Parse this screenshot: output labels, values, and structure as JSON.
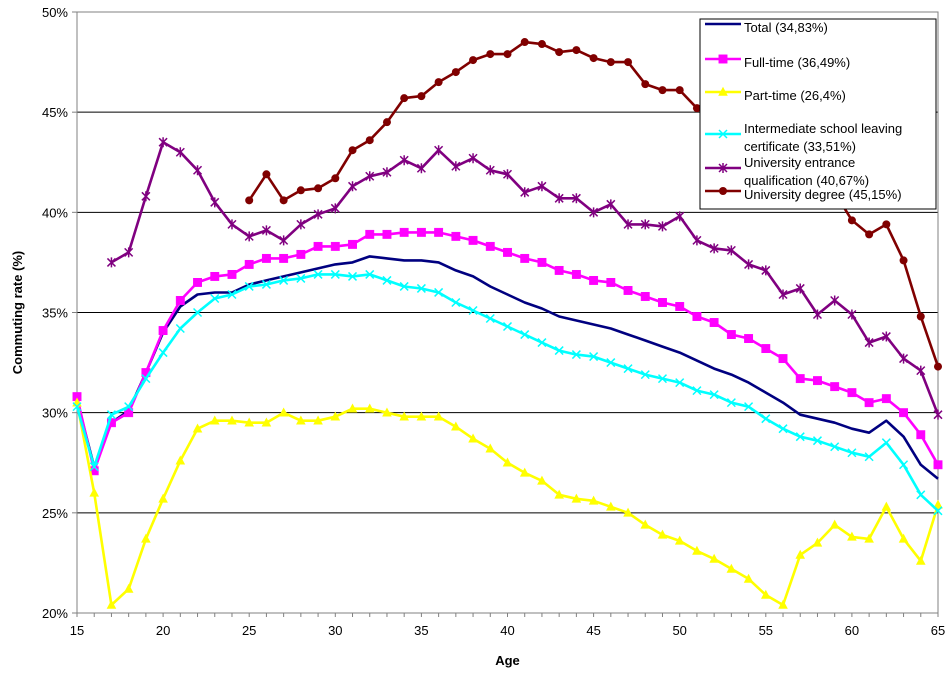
{
  "chart_data": {
    "type": "line",
    "xlabel": "Age",
    "ylabel": "Commuting rate (%)",
    "xlim": [
      15,
      65
    ],
    "ylim": [
      20,
      50
    ],
    "x_ticks": [
      "15",
      "20",
      "25",
      "30",
      "35",
      "40",
      "45",
      "50",
      "55",
      "60",
      "65"
    ],
    "y_ticks": [
      "20%",
      "25%",
      "30%",
      "35%",
      "40%",
      "45%",
      "50%"
    ],
    "grid": "horizontal",
    "legend_position": "top-right",
    "series": [
      {
        "name": "Total (34,83%)",
        "color": "#000080",
        "marker": "none",
        "points": [
          [
            15,
            30.6
          ],
          [
            16,
            27.3
          ],
          [
            17,
            29.5
          ],
          [
            18,
            30.1
          ],
          [
            19,
            32.0
          ],
          [
            20,
            34.0
          ],
          [
            21,
            35.3
          ],
          [
            22,
            35.9
          ],
          [
            23,
            36.0
          ],
          [
            24,
            36.0
          ],
          [
            25,
            36.4
          ],
          [
            26,
            36.6
          ],
          [
            27,
            36.8
          ],
          [
            28,
            37.0
          ],
          [
            29,
            37.2
          ],
          [
            30,
            37.4
          ],
          [
            31,
            37.5
          ],
          [
            32,
            37.8
          ],
          [
            33,
            37.7
          ],
          [
            34,
            37.6
          ],
          [
            35,
            37.6
          ],
          [
            36,
            37.5
          ],
          [
            37,
            37.1
          ],
          [
            38,
            36.8
          ],
          [
            39,
            36.3
          ],
          [
            40,
            35.9
          ],
          [
            41,
            35.5
          ],
          [
            42,
            35.2
          ],
          [
            43,
            34.8
          ],
          [
            44,
            34.6
          ],
          [
            45,
            34.4
          ],
          [
            46,
            34.2
          ],
          [
            47,
            33.9
          ],
          [
            48,
            33.6
          ],
          [
            49,
            33.3
          ],
          [
            50,
            33.0
          ],
          [
            51,
            32.6
          ],
          [
            52,
            32.2
          ],
          [
            53,
            31.9
          ],
          [
            54,
            31.5
          ],
          [
            55,
            31.0
          ],
          [
            56,
            30.5
          ],
          [
            57,
            29.9
          ],
          [
            58,
            29.7
          ],
          [
            59,
            29.5
          ],
          [
            60,
            29.2
          ],
          [
            61,
            29.0
          ],
          [
            62,
            29.6
          ],
          [
            63,
            28.8
          ],
          [
            64,
            27.4
          ],
          [
            65,
            26.7
          ]
        ]
      },
      {
        "name": "Full-time (36,49%)",
        "color": "#FF00FF",
        "marker": "square",
        "points": [
          [
            15,
            30.8
          ],
          [
            16,
            27.1
          ],
          [
            17,
            29.5
          ],
          [
            18,
            30.0
          ],
          [
            19,
            32.0
          ],
          [
            20,
            34.1
          ],
          [
            21,
            35.6
          ],
          [
            22,
            36.5
          ],
          [
            23,
            36.8
          ],
          [
            24,
            36.9
          ],
          [
            25,
            37.4
          ],
          [
            26,
            37.7
          ],
          [
            27,
            37.7
          ],
          [
            28,
            37.9
          ],
          [
            29,
            38.3
          ],
          [
            30,
            38.3
          ],
          [
            31,
            38.4
          ],
          [
            32,
            38.9
          ],
          [
            33,
            38.9
          ],
          [
            34,
            39.0
          ],
          [
            35,
            39.0
          ],
          [
            36,
            39.0
          ],
          [
            37,
            38.8
          ],
          [
            38,
            38.6
          ],
          [
            39,
            38.3
          ],
          [
            40,
            38.0
          ],
          [
            41,
            37.7
          ],
          [
            42,
            37.5
          ],
          [
            43,
            37.1
          ],
          [
            44,
            36.9
          ],
          [
            45,
            36.6
          ],
          [
            46,
            36.5
          ],
          [
            47,
            36.1
          ],
          [
            48,
            35.8
          ],
          [
            49,
            35.5
          ],
          [
            50,
            35.3
          ],
          [
            51,
            34.8
          ],
          [
            52,
            34.5
          ],
          [
            53,
            33.9
          ],
          [
            54,
            33.7
          ],
          [
            55,
            33.2
          ],
          [
            56,
            32.7
          ],
          [
            57,
            31.7
          ],
          [
            58,
            31.6
          ],
          [
            59,
            31.3
          ],
          [
            60,
            31.0
          ],
          [
            61,
            30.5
          ],
          [
            62,
            30.7
          ],
          [
            63,
            30.0
          ],
          [
            64,
            28.9
          ],
          [
            65,
            27.4
          ]
        ]
      },
      {
        "name": "Part-time (26,4%)",
        "color": "#FFFF00",
        "marker": "triangle",
        "points": [
          [
            15,
            30.5
          ],
          [
            16,
            26.0
          ],
          [
            17,
            20.4
          ],
          [
            18,
            21.2
          ],
          [
            19,
            23.7
          ],
          [
            20,
            25.7
          ],
          [
            21,
            27.6
          ],
          [
            22,
            29.2
          ],
          [
            23,
            29.6
          ],
          [
            24,
            29.6
          ],
          [
            25,
            29.5
          ],
          [
            26,
            29.5
          ],
          [
            27,
            30.0
          ],
          [
            28,
            29.6
          ],
          [
            29,
            29.6
          ],
          [
            30,
            29.8
          ],
          [
            31,
            30.2
          ],
          [
            32,
            30.2
          ],
          [
            33,
            30.0
          ],
          [
            34,
            29.8
          ],
          [
            35,
            29.8
          ],
          [
            36,
            29.8
          ],
          [
            37,
            29.3
          ],
          [
            38,
            28.7
          ],
          [
            39,
            28.2
          ],
          [
            40,
            27.5
          ],
          [
            41,
            27.0
          ],
          [
            42,
            26.6
          ],
          [
            43,
            25.9
          ],
          [
            44,
            25.7
          ],
          [
            45,
            25.6
          ],
          [
            46,
            25.3
          ],
          [
            47,
            25.0
          ],
          [
            48,
            24.4
          ],
          [
            49,
            23.9
          ],
          [
            50,
            23.6
          ],
          [
            51,
            23.1
          ],
          [
            52,
            22.7
          ],
          [
            53,
            22.2
          ],
          [
            54,
            21.7
          ],
          [
            55,
            20.9
          ],
          [
            56,
            20.4
          ],
          [
            57,
            22.9
          ],
          [
            58,
            23.5
          ],
          [
            59,
            24.4
          ],
          [
            60,
            23.8
          ],
          [
            61,
            23.7
          ],
          [
            62,
            25.3
          ],
          [
            63,
            23.7
          ],
          [
            64,
            22.6
          ],
          [
            65,
            25.4
          ]
        ]
      },
      {
        "name": "Intermediate school leaving certificate (33,51%)",
        "color": "#00FFFF",
        "marker": "x",
        "points": [
          [
            15,
            30.3
          ],
          [
            16,
            27.3
          ],
          [
            17,
            29.9
          ],
          [
            18,
            30.3
          ],
          [
            19,
            31.7
          ],
          [
            20,
            33.0
          ],
          [
            21,
            34.2
          ],
          [
            22,
            35.0
          ],
          [
            23,
            35.7
          ],
          [
            24,
            35.9
          ],
          [
            25,
            36.3
          ],
          [
            26,
            36.4
          ],
          [
            27,
            36.6
          ],
          [
            28,
            36.7
          ],
          [
            29,
            36.9
          ],
          [
            30,
            36.9
          ],
          [
            31,
            36.8
          ],
          [
            32,
            36.9
          ],
          [
            33,
            36.6
          ],
          [
            34,
            36.3
          ],
          [
            35,
            36.2
          ],
          [
            36,
            36.0
          ],
          [
            37,
            35.5
          ],
          [
            38,
            35.1
          ],
          [
            39,
            34.7
          ],
          [
            40,
            34.3
          ],
          [
            41,
            33.9
          ],
          [
            42,
            33.5
          ],
          [
            43,
            33.1
          ],
          [
            44,
            32.9
          ],
          [
            45,
            32.8
          ],
          [
            46,
            32.5
          ],
          [
            47,
            32.2
          ],
          [
            48,
            31.9
          ],
          [
            49,
            31.7
          ],
          [
            50,
            31.5
          ],
          [
            51,
            31.1
          ],
          [
            52,
            30.9
          ],
          [
            53,
            30.5
          ],
          [
            54,
            30.3
          ],
          [
            55,
            29.7
          ],
          [
            56,
            29.2
          ],
          [
            57,
            28.8
          ],
          [
            58,
            28.6
          ],
          [
            59,
            28.3
          ],
          [
            60,
            28.0
          ],
          [
            61,
            27.8
          ],
          [
            62,
            28.5
          ],
          [
            63,
            27.4
          ],
          [
            64,
            25.9
          ],
          [
            65,
            25.1
          ]
        ]
      },
      {
        "name": "University entrance qualification (40,67%)",
        "color": "#800080",
        "marker": "star",
        "points": [
          [
            17,
            37.5
          ],
          [
            18,
            38.0
          ],
          [
            19,
            40.8
          ],
          [
            20,
            43.5
          ],
          [
            21,
            43.0
          ],
          [
            22,
            42.1
          ],
          [
            23,
            40.5
          ],
          [
            24,
            39.4
          ],
          [
            25,
            38.8
          ],
          [
            26,
            39.1
          ],
          [
            27,
            38.6
          ],
          [
            28,
            39.4
          ],
          [
            29,
            39.9
          ],
          [
            30,
            40.2
          ],
          [
            31,
            41.3
          ],
          [
            32,
            41.8
          ],
          [
            33,
            42.0
          ],
          [
            34,
            42.6
          ],
          [
            35,
            42.2
          ],
          [
            36,
            43.1
          ],
          [
            37,
            42.3
          ],
          [
            38,
            42.7
          ],
          [
            39,
            42.1
          ],
          [
            40,
            41.9
          ],
          [
            41,
            41.0
          ],
          [
            42,
            41.3
          ],
          [
            43,
            40.7
          ],
          [
            44,
            40.7
          ],
          [
            45,
            40.0
          ],
          [
            46,
            40.4
          ],
          [
            47,
            39.4
          ],
          [
            48,
            39.4
          ],
          [
            49,
            39.3
          ],
          [
            50,
            39.8
          ],
          [
            51,
            38.6
          ],
          [
            52,
            38.2
          ],
          [
            53,
            38.1
          ],
          [
            54,
            37.4
          ],
          [
            55,
            37.1
          ],
          [
            56,
            35.9
          ],
          [
            57,
            36.2
          ],
          [
            58,
            34.9
          ],
          [
            59,
            35.6
          ],
          [
            60,
            34.9
          ],
          [
            61,
            33.5
          ],
          [
            62,
            33.8
          ],
          [
            63,
            32.7
          ],
          [
            64,
            32.1
          ],
          [
            65,
            29.9
          ]
        ]
      },
      {
        "name": "University degree (45,15%)",
        "color": "#800000",
        "marker": "circle",
        "points": [
          [
            25,
            40.6
          ],
          [
            26,
            41.9
          ],
          [
            27,
            40.6
          ],
          [
            28,
            41.1
          ],
          [
            29,
            41.2
          ],
          [
            30,
            41.7
          ],
          [
            31,
            43.1
          ],
          [
            32,
            43.6
          ],
          [
            33,
            44.5
          ],
          [
            34,
            45.7
          ],
          [
            35,
            45.8
          ],
          [
            36,
            46.5
          ],
          [
            37,
            47.0
          ],
          [
            38,
            47.6
          ],
          [
            39,
            47.9
          ],
          [
            40,
            47.9
          ],
          [
            41,
            48.5
          ],
          [
            42,
            48.4
          ],
          [
            43,
            48.0
          ],
          [
            44,
            48.1
          ],
          [
            45,
            47.7
          ],
          [
            46,
            47.5
          ],
          [
            47,
            47.5
          ],
          [
            48,
            46.4
          ],
          [
            49,
            46.1
          ],
          [
            50,
            46.1
          ],
          [
            51,
            45.2
          ],
          [
            52,
            44.7
          ],
          [
            53,
            44.6
          ],
          [
            54,
            43.5
          ],
          [
            55,
            43.4
          ],
          [
            56,
            42.6
          ],
          [
            57,
            41.7
          ],
          [
            58,
            41.3
          ],
          [
            59,
            41.0
          ],
          [
            60,
            39.6
          ],
          [
            61,
            38.9
          ],
          [
            62,
            39.4
          ],
          [
            63,
            37.6
          ],
          [
            64,
            34.8
          ],
          [
            65,
            32.3
          ]
        ]
      }
    ]
  }
}
